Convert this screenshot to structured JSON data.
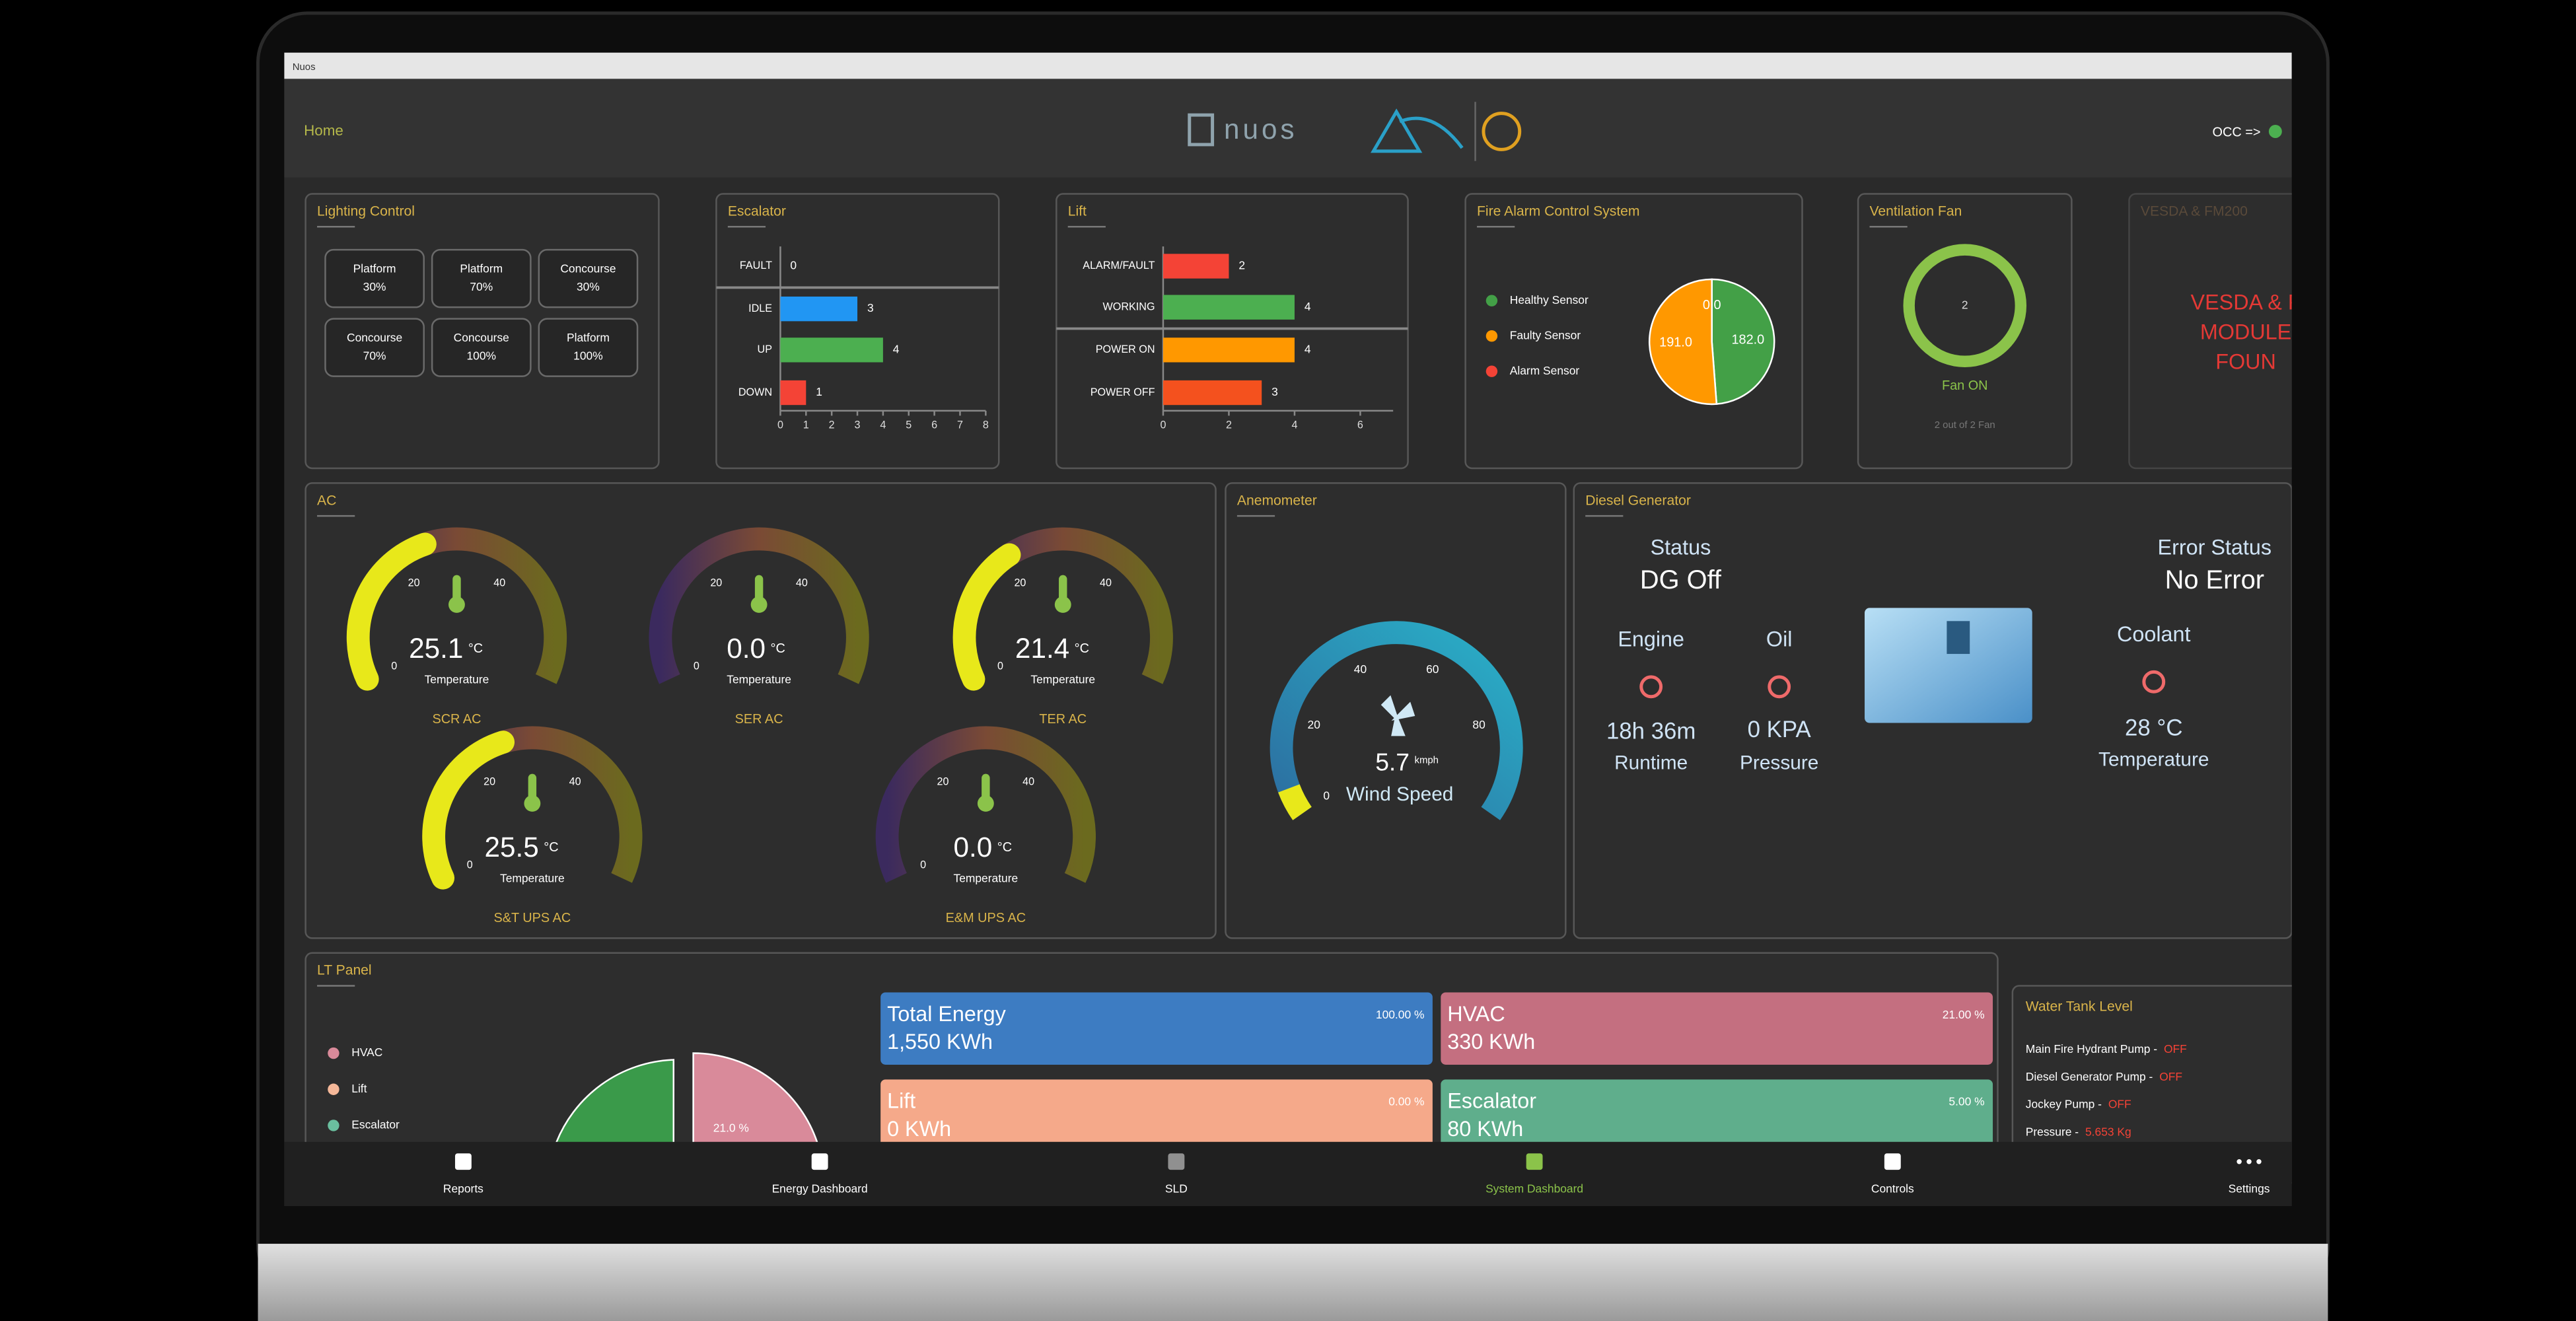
{
  "window": {
    "title": "Nuos"
  },
  "header": {
    "home": "Home",
    "brand": "nuos",
    "status": "OCC =>"
  },
  "lighting": {
    "title": "Lighting Control",
    "buttons": [
      [
        "Platform",
        "30%"
      ],
      [
        "Platform",
        "70%"
      ],
      [
        "Concourse",
        "30%"
      ],
      [
        "Concourse",
        "70%"
      ],
      [
        "Concourse",
        "100%"
      ],
      [
        "Platform",
        "100%"
      ]
    ]
  },
  "escalator": {
    "title": "Escalator",
    "categories": [
      "FAULT",
      "IDLE",
      "UP",
      "DOWN"
    ],
    "values": [
      0,
      3,
      4,
      1
    ],
    "colors": [
      "#f44336",
      "#2196f3",
      "#4caf50",
      "#f44336"
    ],
    "xlim": [
      0,
      8
    ],
    "xticks": [
      0,
      1,
      2,
      3,
      4,
      5,
      6,
      7,
      8
    ]
  },
  "lift": {
    "title": "Lift",
    "categories": [
      "ALARM/FAULT",
      "WORKING",
      "POWER ON",
      "POWER OFF"
    ],
    "values": [
      2,
      4,
      4,
      3
    ],
    "colors": [
      "#f44336",
      "#4caf50",
      "#ff9800",
      "#f4511e"
    ],
    "xlim": [
      0,
      7
    ],
    "xticks": [
      0,
      2,
      4,
      6
    ]
  },
  "fire_alarm": {
    "title": "Fire Alarm Control System",
    "legend": [
      "Healthy Sensor",
      "Faulty Sensor",
      "Alarm Sensor"
    ],
    "values": [
      182,
      191,
      0
    ],
    "value_labels": [
      "182.0",
      "191.0",
      "0.0"
    ],
    "colors": [
      "#43a047",
      "#ff9800",
      "#f44336"
    ]
  },
  "ventilation": {
    "title": "Ventilation Fan",
    "count": 2,
    "status": "Fan ON",
    "note": "2 out of 2 Fan"
  },
  "vesda": {
    "title": "VESDA & FM200",
    "message": [
      "VESDA & F",
      "MODULE",
      "FOUN"
    ]
  },
  "ac": {
    "title": "AC",
    "lim": [
      0,
      60
    ],
    "ticks": [
      0,
      20,
      40
    ],
    "quantity": "Temperature",
    "unit": "°C",
    "names": [
      "SCR AC",
      "SER AC",
      "TER AC",
      "S&T UPS AC",
      "E&M UPS AC"
    ],
    "values": [
      25.1,
      0,
      21.4,
      25.5,
      0
    ],
    "value_labels": [
      "25.1",
      "0.0",
      "21.4",
      "25.5",
      "0.0"
    ]
  },
  "anemometer": {
    "title": "Anemometer",
    "value": 5.7,
    "unit": "kmph",
    "label": "Wind Speed",
    "lim": [
      0,
      100
    ],
    "ticks": [
      0,
      20,
      40,
      60,
      80
    ]
  },
  "diesel": {
    "title": "Diesel Generator",
    "status_label": "Status",
    "status": "DG Off",
    "error_label": "Error Status",
    "error": "No Error",
    "engine": {
      "label": "Engine",
      "value": "18h 36m",
      "caption": "Runtime"
    },
    "oil": {
      "label": "Oil",
      "value": "0 KPA",
      "caption": "Pressure"
    },
    "coolant": {
      "label": "Coolant",
      "value": "28 °C",
      "caption": "Temperature"
    }
  },
  "lt_panel": {
    "title": "LT Panel",
    "legend": [
      "HVAC",
      "Lift",
      "Escalator"
    ],
    "legend_colors": [
      "#d98a9a",
      "#f5b899",
      "#6abf9f"
    ],
    "pie_label": "21.0 %",
    "cards": [
      {
        "name": "Total Energy",
        "energy": "1,550 KWh",
        "share": "100.00 %",
        "color": "#3d7cc2"
      },
      {
        "name": "HVAC",
        "energy": "330 KWh",
        "share": "21.00 %",
        "color": "#c46f80"
      },
      {
        "name": "Lift",
        "energy": "0 KWh",
        "share": "0.00 %",
        "color": "#f5a98a"
      },
      {
        "name": "Escalator",
        "energy": "80 KWh",
        "share": "5.00 %",
        "color": "#5fae8c"
      }
    ]
  },
  "water_tank": {
    "title": "Water Tank Level",
    "items": [
      [
        "Main Fire Hydrant Pump -",
        "OFF"
      ],
      [
        "Diesel Generator Pump -",
        "OFF"
      ],
      [
        "Jockey Pump -",
        "OFF"
      ],
      [
        "Pressure -",
        "5.653 Kg"
      ]
    ]
  },
  "nav": {
    "items": [
      "Reports",
      "Energy Dashboard",
      "SLD",
      "System Dashboard",
      "Controls",
      "Settings"
    ],
    "active": 3
  }
}
